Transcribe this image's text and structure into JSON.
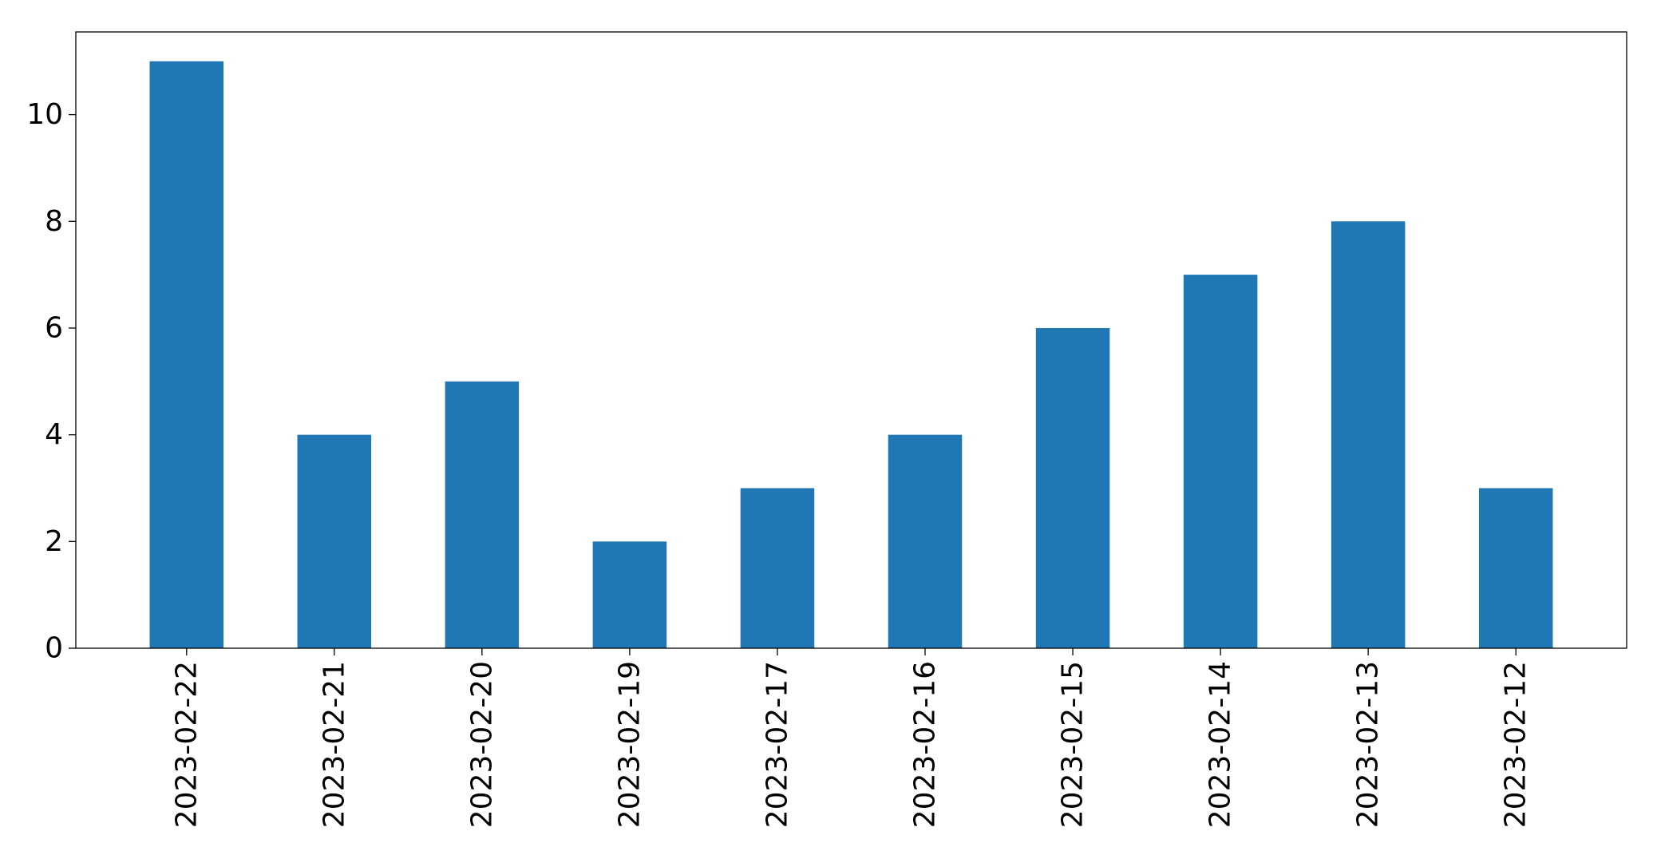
{
  "chart_data": {
    "type": "bar",
    "title": "",
    "xlabel": "",
    "ylabel": "",
    "categories": [
      "2023-02-22",
      "2023-02-21",
      "2023-02-20",
      "2023-02-19",
      "2023-02-17",
      "2023-02-16",
      "2023-02-15",
      "2023-02-14",
      "2023-02-13",
      "2023-02-12"
    ],
    "values": [
      11,
      4,
      5,
      2,
      3,
      4,
      6,
      7,
      8,
      3
    ],
    "ylim": [
      0,
      11.55
    ],
    "yticks": [
      0,
      2,
      4,
      6,
      8,
      10
    ],
    "grid": false,
    "legend": "none",
    "bar_color": "#1f77b4"
  }
}
